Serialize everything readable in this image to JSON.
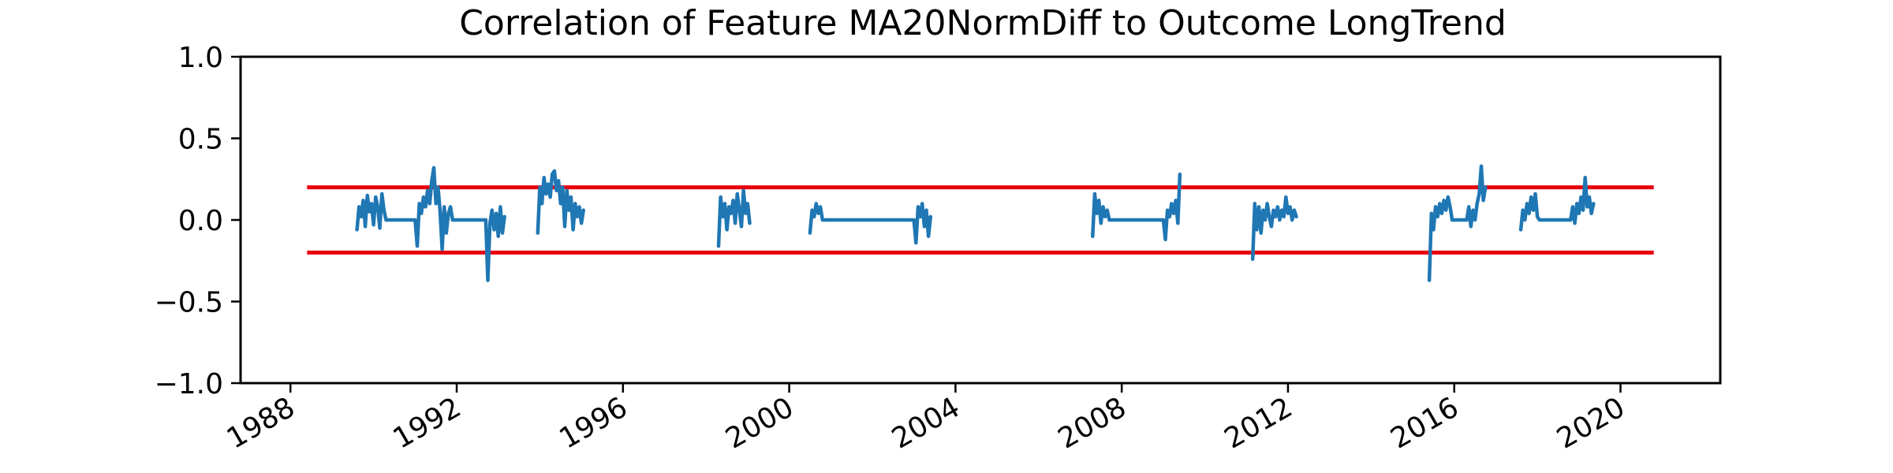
{
  "chart_data": {
    "type": "line",
    "title": "Correlation of Feature MA20NormDiff to Outcome LongTrend",
    "xlabel": "",
    "ylabel": "",
    "xlim": [
      1986.8,
      2022.4
    ],
    "ylim": [
      -1.0,
      1.0
    ],
    "x_ticks": [
      {
        "value": 1988,
        "label": "1988"
      },
      {
        "value": 1992,
        "label": "1992"
      },
      {
        "value": 1996,
        "label": "1996"
      },
      {
        "value": 2000,
        "label": "2000"
      },
      {
        "value": 2004,
        "label": "2004"
      },
      {
        "value": 2008,
        "label": "2008"
      },
      {
        "value": 2012,
        "label": "2012"
      },
      {
        "value": 2016,
        "label": "2016"
      },
      {
        "value": 2020,
        "label": "2020"
      }
    ],
    "y_ticks": [
      {
        "value": 1.0,
        "label": "1.0"
      },
      {
        "value": 0.5,
        "label": "0.5"
      },
      {
        "value": 0.0,
        "label": "0.0"
      },
      {
        "value": -0.5,
        "label": "−0.5"
      },
      {
        "value": -1.0,
        "label": "−1.0"
      }
    ],
    "grid": false,
    "legend": "none",
    "thresholds": [
      {
        "value": 0.2,
        "x_range": [
          1988.4,
          2020.8
        ],
        "color": "#e8000b"
      },
      {
        "value": -0.2,
        "x_range": [
          1988.4,
          2020.8
        ],
        "color": "#e8000b"
      }
    ],
    "series": [
      {
        "color": "#1f77b4",
        "segments": [
          [
            [
              1989.6,
              -0.06
            ],
            [
              1989.65,
              0.08
            ],
            [
              1989.7,
              0.02
            ],
            [
              1989.75,
              0.12
            ],
            [
              1989.8,
              -0.04
            ],
            [
              1989.85,
              0.15
            ],
            [
              1989.9,
              0.05
            ],
            [
              1989.95,
              0.1
            ],
            [
              1990.0,
              -0.03
            ],
            [
              1990.05,
              0.14
            ],
            [
              1990.1,
              0.08
            ],
            [
              1990.15,
              -0.05
            ],
            [
              1990.2,
              0.16
            ],
            [
              1990.25,
              0.06
            ],
            [
              1990.3,
              0.0
            ],
            [
              1990.5,
              0.0
            ],
            [
              1990.8,
              0.0
            ],
            [
              1991.0,
              0.0
            ],
            [
              1991.05,
              -0.16
            ],
            [
              1991.1,
              0.1
            ],
            [
              1991.15,
              0.04
            ],
            [
              1991.2,
              0.14
            ],
            [
              1991.25,
              0.08
            ],
            [
              1991.3,
              0.18
            ],
            [
              1991.35,
              0.1
            ],
            [
              1991.4,
              0.24
            ],
            [
              1991.45,
              0.32
            ],
            [
              1991.5,
              0.1
            ],
            [
              1991.55,
              0.2
            ],
            [
              1991.6,
              0.06
            ],
            [
              1991.65,
              -0.18
            ],
            [
              1991.7,
              0.08
            ],
            [
              1991.75,
              -0.08
            ],
            [
              1991.8,
              0.04
            ],
            [
              1991.85,
              0.08
            ],
            [
              1991.9,
              0.0
            ],
            [
              1992.2,
              0.0
            ],
            [
              1992.5,
              0.0
            ],
            [
              1992.7,
              0.0
            ],
            [
              1992.75,
              -0.37
            ],
            [
              1992.8,
              -0.02
            ],
            [
              1992.85,
              0.06
            ],
            [
              1992.9,
              -0.06
            ],
            [
              1992.95,
              0.04
            ],
            [
              1993.0,
              -0.1
            ],
            [
              1993.05,
              0.08
            ],
            [
              1993.1,
              -0.08
            ],
            [
              1993.15,
              0.02
            ]
          ],
          [
            [
              1993.95,
              -0.08
            ],
            [
              1994.0,
              0.2
            ],
            [
              1994.05,
              0.1
            ],
            [
              1994.1,
              0.26
            ],
            [
              1994.15,
              0.16
            ],
            [
              1994.2,
              0.22
            ],
            [
              1994.25,
              0.14
            ],
            [
              1994.3,
              0.28
            ],
            [
              1994.35,
              0.3
            ],
            [
              1994.4,
              0.18
            ],
            [
              1994.45,
              0.24
            ],
            [
              1994.5,
              0.1
            ],
            [
              1994.55,
              0.2
            ],
            [
              1994.6,
              -0.04
            ],
            [
              1994.65,
              0.18
            ],
            [
              1994.7,
              0.06
            ],
            [
              1994.75,
              0.14
            ],
            [
              1994.8,
              -0.06
            ],
            [
              1994.85,
              0.1
            ],
            [
              1994.9,
              0.02
            ],
            [
              1994.95,
              0.08
            ],
            [
              1995.0,
              -0.02
            ],
            [
              1995.05,
              0.06
            ]
          ],
          [
            [
              1998.3,
              -0.16
            ],
            [
              1998.35,
              0.14
            ],
            [
              1998.4,
              0.02
            ],
            [
              1998.45,
              0.1
            ],
            [
              1998.5,
              -0.06
            ],
            [
              1998.55,
              0.08
            ],
            [
              1998.6,
              0.04
            ],
            [
              1998.65,
              0.12
            ],
            [
              1998.7,
              -0.02
            ],
            [
              1998.75,
              0.16
            ],
            [
              1998.8,
              0.06
            ],
            [
              1998.85,
              -0.04
            ],
            [
              1998.9,
              0.18
            ],
            [
              1998.95,
              0.04
            ],
            [
              1999.0,
              0.1
            ],
            [
              1999.05,
              -0.02
            ]
          ],
          [
            [
              2000.5,
              -0.08
            ],
            [
              2000.55,
              0.06
            ],
            [
              2000.6,
              0.02
            ],
            [
              2000.65,
              0.1
            ],
            [
              2000.7,
              0.04
            ],
            [
              2000.75,
              0.08
            ],
            [
              2000.8,
              0.0
            ],
            [
              2001.2,
              0.0
            ],
            [
              2001.8,
              0.0
            ],
            [
              2002.5,
              0.0
            ],
            [
              2003.0,
              0.0
            ],
            [
              2003.05,
              -0.14
            ],
            [
              2003.1,
              0.08
            ],
            [
              2003.15,
              0.02
            ],
            [
              2003.2,
              0.1
            ],
            [
              2003.25,
              -0.04
            ],
            [
              2003.3,
              0.06
            ],
            [
              2003.35,
              -0.1
            ],
            [
              2003.4,
              0.02
            ]
          ],
          [
            [
              2007.3,
              -0.1
            ],
            [
              2007.35,
              0.16
            ],
            [
              2007.4,
              0.04
            ],
            [
              2007.45,
              0.12
            ],
            [
              2007.5,
              -0.02
            ],
            [
              2007.55,
              0.08
            ],
            [
              2007.6,
              0.02
            ],
            [
              2007.65,
              0.06
            ],
            [
              2007.7,
              0.0
            ],
            [
              2008.2,
              0.0
            ],
            [
              2008.8,
              0.0
            ],
            [
              2009.0,
              0.0
            ],
            [
              2009.05,
              -0.12
            ],
            [
              2009.1,
              0.06
            ],
            [
              2009.15,
              0.02
            ],
            [
              2009.2,
              0.1
            ],
            [
              2009.25,
              0.04
            ],
            [
              2009.3,
              0.12
            ],
            [
              2009.35,
              -0.02
            ],
            [
              2009.4,
              0.28
            ]
          ],
          [
            [
              2011.15,
              -0.24
            ],
            [
              2011.2,
              0.1
            ],
            [
              2011.25,
              -0.06
            ],
            [
              2011.3,
              0.08
            ],
            [
              2011.35,
              -0.08
            ],
            [
              2011.4,
              0.06
            ],
            [
              2011.45,
              0.0
            ],
            [
              2011.5,
              0.1
            ],
            [
              2011.55,
              0.02
            ],
            [
              2011.6,
              -0.04
            ],
            [
              2011.65,
              0.06
            ],
            [
              2011.7,
              0.02
            ],
            [
              2011.75,
              0.08
            ],
            [
              2011.8,
              0.0
            ],
            [
              2011.85,
              0.06
            ],
            [
              2011.9,
              0.02
            ],
            [
              2011.95,
              0.14
            ],
            [
              2012.0,
              0.04
            ],
            [
              2012.05,
              0.08
            ],
            [
              2012.1,
              0.0
            ],
            [
              2012.15,
              0.06
            ],
            [
              2012.2,
              0.02
            ]
          ],
          [
            [
              2015.4,
              -0.37
            ],
            [
              2015.45,
              0.04
            ],
            [
              2015.5,
              -0.06
            ],
            [
              2015.55,
              0.08
            ],
            [
              2015.6,
              0.02
            ],
            [
              2015.65,
              0.1
            ],
            [
              2015.7,
              0.04
            ],
            [
              2015.75,
              0.12
            ],
            [
              2015.8,
              0.06
            ],
            [
              2015.85,
              0.14
            ],
            [
              2015.9,
              0.08
            ],
            [
              2015.95,
              0.0
            ],
            [
              2016.3,
              0.0
            ],
            [
              2016.35,
              0.08
            ],
            [
              2016.4,
              -0.04
            ],
            [
              2016.45,
              0.06
            ],
            [
              2016.5,
              0.0
            ],
            [
              2016.55,
              0.1
            ],
            [
              2016.6,
              0.16
            ],
            [
              2016.65,
              0.33
            ],
            [
              2016.7,
              0.12
            ],
            [
              2016.75,
              0.2
            ]
          ],
          [
            [
              2017.6,
              -0.06
            ],
            [
              2017.65,
              0.06
            ],
            [
              2017.7,
              0.0
            ],
            [
              2017.75,
              0.1
            ],
            [
              2017.8,
              0.04
            ],
            [
              2017.85,
              0.14
            ],
            [
              2017.9,
              0.06
            ],
            [
              2017.95,
              0.16
            ],
            [
              2018.0,
              0.02
            ],
            [
              2018.05,
              0.0
            ],
            [
              2018.5,
              0.0
            ],
            [
              2018.8,
              0.0
            ],
            [
              2018.85,
              0.08
            ],
            [
              2018.9,
              -0.02
            ],
            [
              2018.95,
              0.1
            ],
            [
              2019.0,
              0.04
            ],
            [
              2019.05,
              0.14
            ],
            [
              2019.1,
              0.06
            ],
            [
              2019.15,
              0.26
            ],
            [
              2019.2,
              0.08
            ],
            [
              2019.25,
              0.14
            ],
            [
              2019.3,
              0.04
            ],
            [
              2019.35,
              0.1
            ]
          ]
        ]
      }
    ]
  }
}
